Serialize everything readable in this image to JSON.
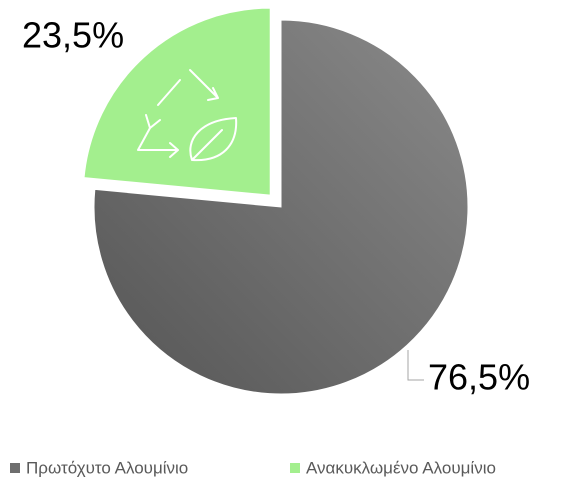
{
  "chart_data": {
    "type": "pie",
    "categories": [
      "Πρωτόχυτο Αλουμίνιο",
      "Ανακυκλωμένο Αλουμίνιο"
    ],
    "values": [
      76.5,
      23.5
    ],
    "value_labels": [
      "76,5%",
      "23,5%"
    ],
    "colors": [
      "#6e6e6e",
      "#a3ef8e"
    ],
    "legend": "bottom"
  }
}
